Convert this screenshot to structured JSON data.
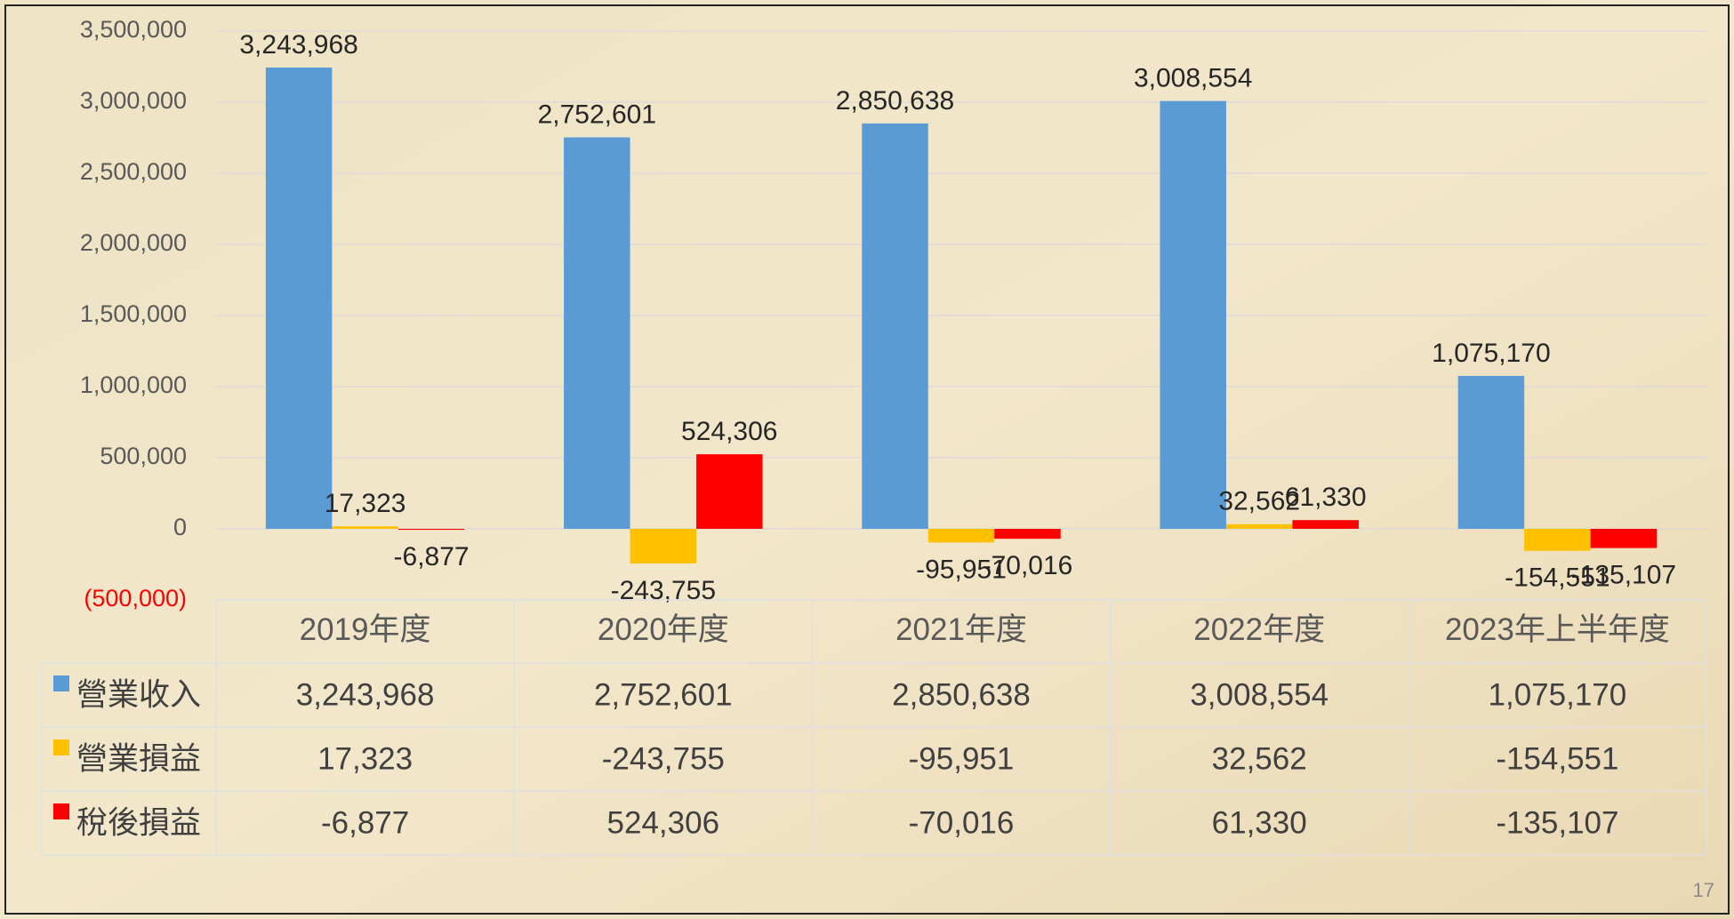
{
  "chart_data": {
    "type": "bar",
    "categories": [
      "2019年度",
      "2020年度",
      "2021年度",
      "2022年度",
      "2023年上半年度"
    ],
    "series": [
      {
        "name": "營業收入",
        "color": "#5b9bd5",
        "values": [
          3243968,
          2752601,
          2850638,
          3008554,
          1075170
        ],
        "value_labels": [
          "3,243,968",
          "2,752,601",
          "2,850,638",
          "3,008,554",
          "1,075,170"
        ]
      },
      {
        "name": "營業損益",
        "color": "#ffc000",
        "values": [
          17323,
          -243755,
          -95951,
          32562,
          -154551
        ],
        "value_labels": [
          "17,323",
          "-243,755",
          "-95,951",
          "32,562",
          "-154,551"
        ]
      },
      {
        "name": "稅後損益",
        "color": "#ff0000",
        "values": [
          -6877,
          524306,
          -70016,
          61330,
          -135107
        ],
        "value_labels": [
          "-6,877",
          "524,306",
          "-70,016",
          "61,330",
          "-135,107"
        ]
      }
    ],
    "ylim": [
      -500000,
      3500000
    ],
    "yticks": [
      {
        "value": -500000,
        "label": "(500,000)"
      },
      0,
      {
        "value": 500000,
        "label": "500,000"
      },
      {
        "value": 1000000,
        "label": "1,000,000"
      },
      {
        "value": 1500000,
        "label": "1,500,000"
      },
      {
        "value": 2000000,
        "label": "2,000,000"
      },
      {
        "value": 2500000,
        "label": "2,500,000"
      },
      {
        "value": 3000000,
        "label": "3,000,000"
      },
      {
        "value": 3500000,
        "label": "3,500,000"
      }
    ],
    "negative_label_color": "#ff0000",
    "grid": true,
    "data_table": true
  },
  "page_number": "17"
}
